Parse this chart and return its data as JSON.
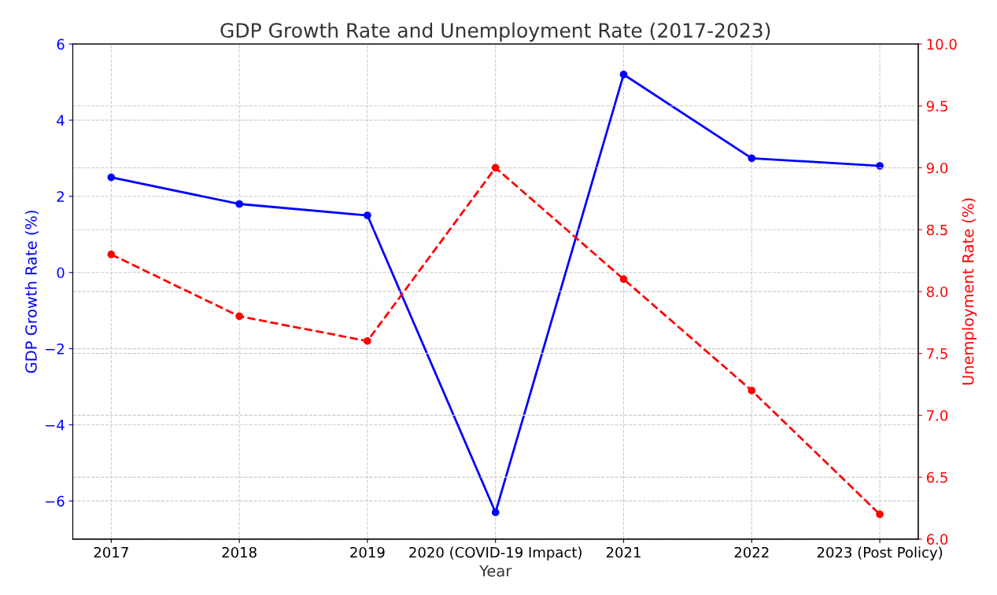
{
  "chart_data": {
    "type": "line",
    "title": "GDP Growth Rate and Unemployment Rate (2017-2023)",
    "xlabel": "Year",
    "ylabel": "GDP Growth Rate (%)",
    "y2label": "Unemployment Rate (%)",
    "categories": [
      "2017",
      "2018",
      "2019",
      "2020 (COVID-19 Impact)",
      "2021",
      "2022",
      "2023 (Post Policy)"
    ],
    "series": [
      {
        "color": "#0000ff",
        "values": [
          2.5,
          1.8,
          1.5,
          -6.3,
          5.2,
          3.0,
          2.8
        ],
        "line_style": "solid",
        "marker": "circle"
      },
      {
        "color": "#ff0000",
        "values": [
          8.3,
          7.8,
          7.6,
          9.0,
          8.1,
          7.2,
          6.2
        ],
        "axis": "y2",
        "line_style": "dashed",
        "marker": "circle"
      }
    ],
    "ylim": [
      -7,
      6
    ],
    "yticks": [
      {
        "value": -6,
        "label": "−6"
      },
      {
        "value": -4,
        "label": "−4"
      },
      {
        "value": -2,
        "label": "−2"
      },
      0,
      2,
      4,
      6
    ],
    "y2lim": [
      6,
      10
    ],
    "y2ticks": [
      {
        "value": 6,
        "label": "6.0"
      },
      {
        "value": 6.5,
        "label": "6.5"
      },
      {
        "value": 7,
        "label": "7.0"
      },
      {
        "value": 7.5,
        "label": "7.5"
      },
      {
        "value": 8,
        "label": "8.0"
      },
      {
        "value": 8.5,
        "label": "8.5"
      },
      {
        "value": 9,
        "label": "9.0"
      },
      {
        "value": 9.5,
        "label": "9.5"
      },
      {
        "value": 10,
        "label": "10.0"
      }
    ],
    "grid": true,
    "legend": false
  }
}
